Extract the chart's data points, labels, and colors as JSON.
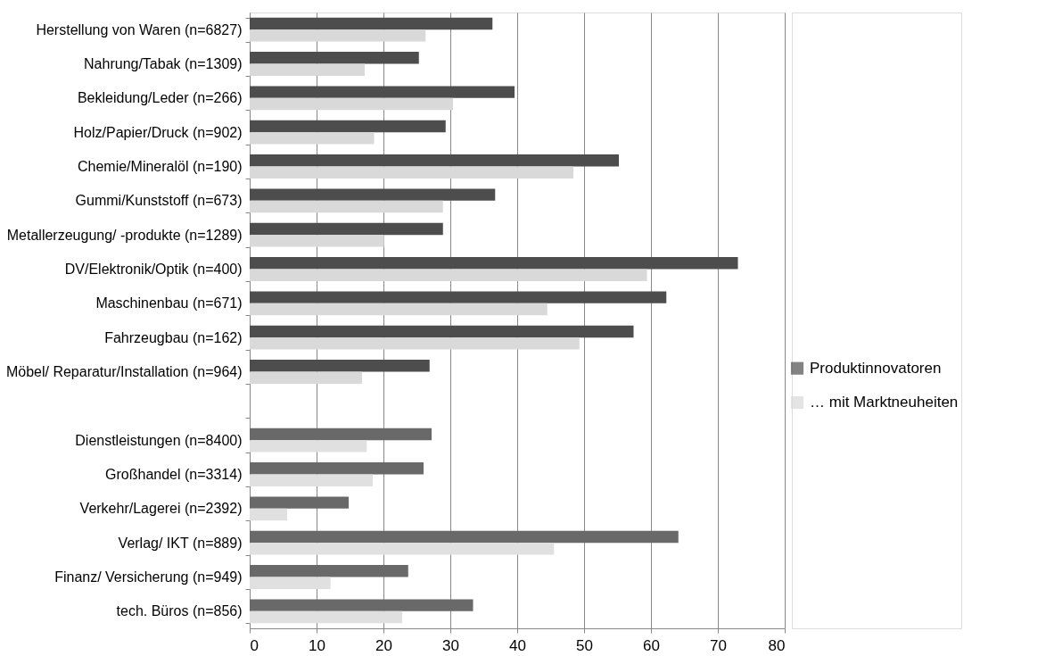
{
  "chart_data": {
    "type": "bar",
    "orientation": "horizontal",
    "categories": [
      "Herstellung von Waren (n=6827)",
      "Nahrung/Tabak (n=1309)",
      "Bekleidung/Leder (n=266)",
      "Holz/Papier/Druck (n=902)",
      "Chemie/Mineralöl (n=190)",
      "Gummi/Kunststoff (n=673)",
      "Metallerzeugung/ -produkte (n=1289)",
      "DV/Elektronik/Optik (n=400)",
      "Maschinenbau (n=671)",
      "Fahrzeugbau (n=162)",
      "Möbel/ Reparatur/Installation (n=964)",
      null,
      "Dienstleistungen (n=8400)",
      "Großhandel  (n=3314)",
      "Verkehr/Lagerei (n=2392)",
      "Verlag/ IKT (n=889)",
      "Finanz/ Versicherung (n=949)",
      "tech. Büros (n=856)"
    ],
    "series": [
      {
        "name": "Produktinnovatoren",
        "color": "#4d4d4d",
        "colors": [
          "#4d4d4d",
          "#4d4d4d",
          "#4d4d4d",
          "#4d4d4d",
          "#4d4d4d",
          "#4d4d4d",
          "#4d4d4d",
          "#4d4d4d",
          "#4d4d4d",
          "#4d4d4d",
          "#4d4d4d",
          null,
          "#696969",
          "#696969",
          "#696969",
          "#696969",
          "#696969",
          "#696969"
        ],
        "values": [
          36.3,
          25.3,
          39.6,
          29.3,
          55.2,
          36.7,
          28.9,
          73.0,
          62.3,
          57.4,
          26.9,
          null,
          27.2,
          26.0,
          14.8,
          64.1,
          23.7,
          33.4
        ]
      },
      {
        "name": "… mit Marktneuheiten",
        "color": "#d9d9d9",
        "colors": [
          "#d9d9d9",
          "#d9d9d9",
          "#d9d9d9",
          "#d9d9d9",
          "#d9d9d9",
          "#d9d9d9",
          "#d9d9d9",
          "#d9d9d9",
          "#d9d9d9",
          "#d9d9d9",
          "#d9d9d9",
          null,
          "#e0e0e0",
          "#e0e0e0",
          "#e0e0e0",
          "#e0e0e0",
          "#e0e0e0",
          "#e0e0e0"
        ],
        "values": [
          26.3,
          17.2,
          30.4,
          18.6,
          48.4,
          28.9,
          20.1,
          59.4,
          44.5,
          49.3,
          16.8,
          null,
          17.5,
          18.4,
          5.6,
          45.5,
          12.1,
          22.8
        ]
      }
    ],
    "xlim": [
      0,
      80
    ],
    "xticks": [
      0,
      10,
      20,
      30,
      40,
      50,
      60,
      70,
      80
    ],
    "grid": "x",
    "legend": "right"
  }
}
